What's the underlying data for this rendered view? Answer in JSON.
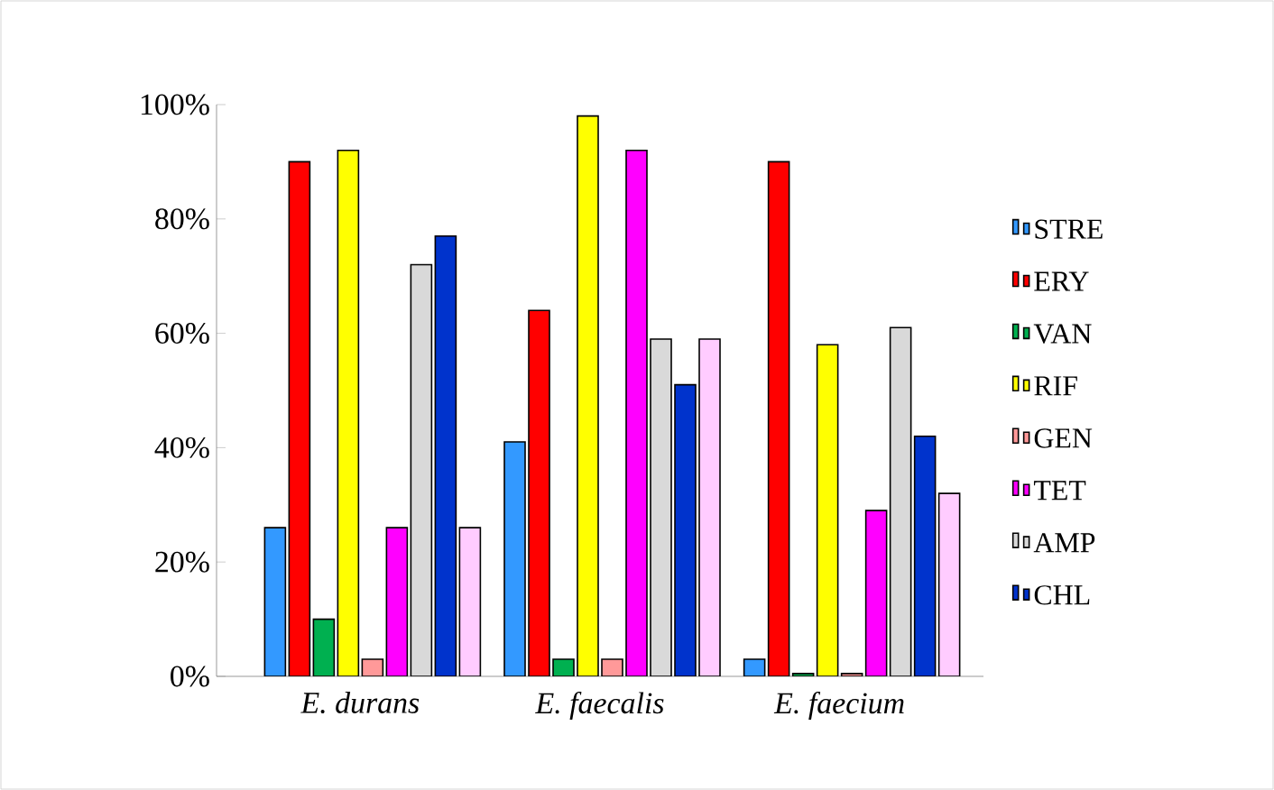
{
  "chart_data": {
    "type": "bar",
    "categories": [
      "E. durans",
      "E. faecalis",
      "E. faecium"
    ],
    "series": [
      {
        "name": "STRE",
        "color": "#3399ff",
        "values": [
          26,
          41,
          3
        ]
      },
      {
        "name": "ERY",
        "color": "#ff0000",
        "values": [
          90,
          64,
          90
        ]
      },
      {
        "name": "VAN",
        "color": "#00b050",
        "values": [
          10,
          3,
          0.5
        ]
      },
      {
        "name": "RIF",
        "color": "#ffff00",
        "values": [
          92,
          98,
          58
        ]
      },
      {
        "name": "GEN",
        "color": "#ff9999",
        "values": [
          3,
          3,
          0.5
        ]
      },
      {
        "name": "TET",
        "color": "#ff00ff",
        "values": [
          26,
          92,
          29
        ]
      },
      {
        "name": "AMP",
        "color": "#d9d9d9",
        "values": [
          72,
          59,
          61
        ]
      },
      {
        "name": "CHL",
        "color": "#0033cc",
        "values": [
          77,
          51,
          42
        ]
      },
      {
        "color": "#ffccff",
        "values": [
          26,
          59,
          32
        ]
      }
    ],
    "ylim": [
      0,
      100
    ],
    "yticks": [
      {
        "value": 0,
        "label": "0%"
      },
      {
        "value": 20,
        "label": "20%"
      },
      {
        "value": 40,
        "label": "40%"
      },
      {
        "value": 60,
        "label": "60%"
      },
      {
        "value": 80,
        "label": "80%"
      },
      {
        "value": 100,
        "label": "100%"
      }
    ],
    "legend": "right",
    "grid": false
  }
}
